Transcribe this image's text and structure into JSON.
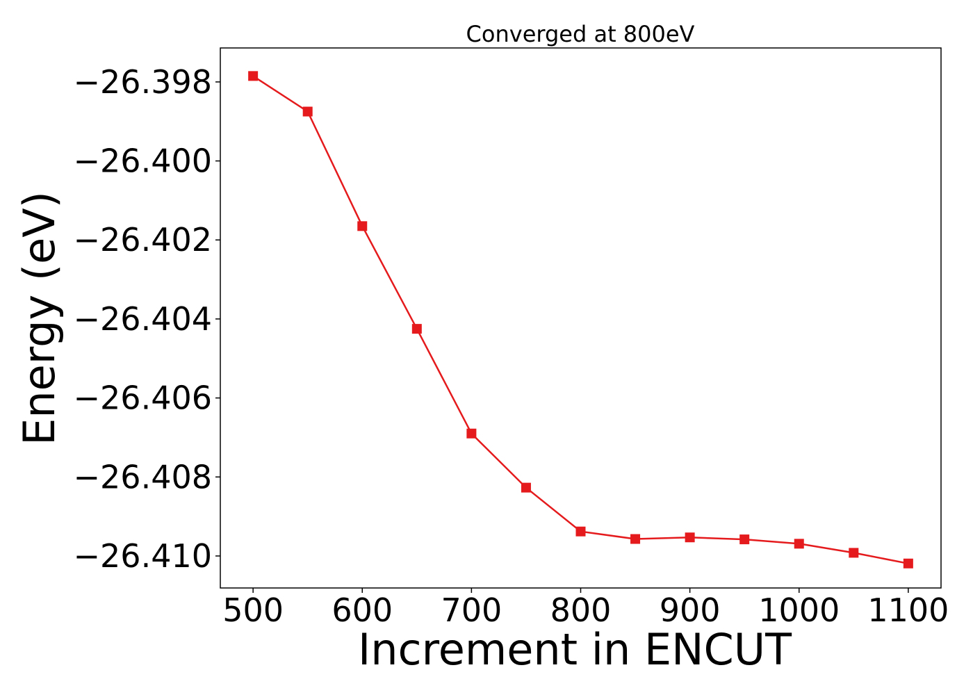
{
  "chart_data": {
    "type": "line",
    "title": "Converged at 800eV",
    "xlabel": "Increment in ENCUT",
    "ylabel": "Energy (eV)",
    "x": [
      500,
      550,
      600,
      650,
      700,
      750,
      800,
      850,
      900,
      950,
      1000,
      1050,
      1100
    ],
    "series": [
      {
        "values": [
          -26.39785,
          -26.39875,
          -26.40165,
          -26.40425,
          -26.4069,
          -26.40827,
          -26.40938,
          -26.40957,
          -26.40953,
          -26.40958,
          -26.40969,
          -26.40992,
          -26.41019
        ],
        "color": "#e41a1c",
        "marker": "square"
      }
    ],
    "xlim": [
      470,
      1130
    ],
    "ylim": [
      -26.41081,
      -26.39714
    ],
    "xticks": [
      500,
      600,
      700,
      800,
      900,
      1000,
      1100
    ],
    "xtick_labels": [
      "500",
      "600",
      "700",
      "800",
      "900",
      "1000",
      "1100"
    ],
    "yticks": [
      -26.398,
      -26.4,
      -26.402,
      -26.404,
      -26.406,
      -26.408,
      -26.41
    ],
    "ytick_labels": [
      "−26.398",
      "−26.400",
      "−26.402",
      "−26.404",
      "−26.406",
      "−26.408",
      "−26.410"
    ],
    "grid": false,
    "legend": "none"
  }
}
